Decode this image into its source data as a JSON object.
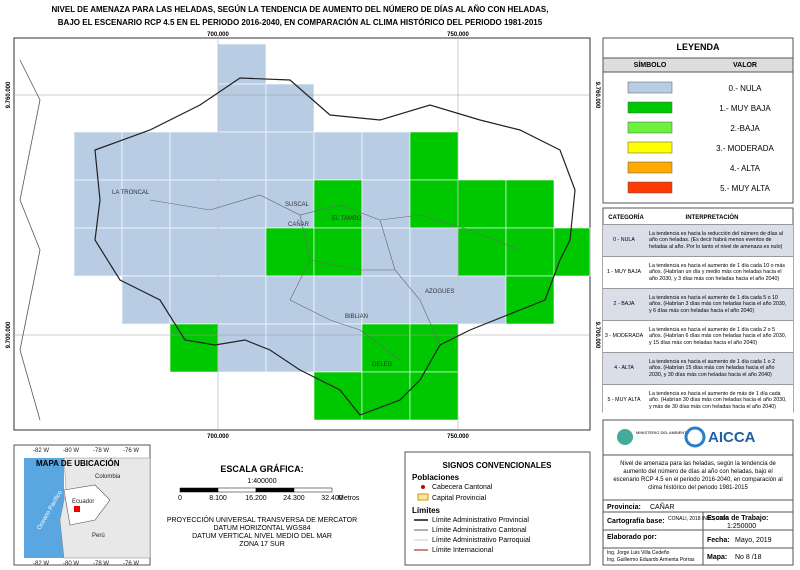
{
  "title": [
    "NIVEL DE AMENAZA PARA LAS HELADAS, SEGÚN LA TENDENCIA DE AUMENTO DEL NÚMERO DE DÍAS AL AÑO CON HELADAS,",
    "BAJO EL ESCENARIO RCP 4.5 EN EL PERIODO 2016-2040, EN COMPARACIÓN AL CLIMA HISTÓRICO DEL PERIODO 1981-2015"
  ],
  "map": {
    "x_coords": [
      "700.000",
      "750.000"
    ],
    "y_coords": [
      "9.760.000",
      "9.700.000"
    ],
    "places": [
      "LA TRONCAL",
      "SUSCAL",
      "CAÑAR",
      "EL TAMBO",
      "AZOGUES",
      "BIBLIAN",
      "DELEG"
    ]
  },
  "legend": {
    "title": "LEYENDA",
    "headers": [
      "SÍMBOLO",
      "VALOR"
    ],
    "items": [
      {
        "label": "0.- NULA",
        "color": "#b8cce4"
      },
      {
        "label": "1.- MUY BAJA",
        "color": "#00c800"
      },
      {
        "label": "2.-BAJA",
        "color": "#6cf23c"
      },
      {
        "label": "3.- MODERADA",
        "color": "#ffff00"
      },
      {
        "label": "4.- ALTA",
        "color": "#ffaa00"
      },
      {
        "label": "5.- MUY ALTA",
        "color": "#ff3a00"
      }
    ]
  },
  "interpretation": {
    "headers": [
      "CATEGORÍA",
      "INTERPRETACIÓN"
    ],
    "rows": [
      [
        "0 - NULA",
        "La tendencia es hacia la reducción del número de días al año con heladas. (Es decir habrá menos eventos de heladas al año. Por lo tanto el nivel de amenaza es nulo)"
      ],
      [
        "1 - MUY BAJA",
        "La tendencia es hacia el aumento de 1 día cada 10 o más años. (Habrían un día y medio más con heladas hacia el año 2030, y 3 días más con heladas hacia el año 2040)"
      ],
      [
        "2 - BAJA",
        "La tendencia es hacia el aumento de 1 día cada 5 o 10 años. (Habrían 3 días más con heladas hacia el año 2030, y 6 días más con heladas hacia el año 2040)"
      ],
      [
        "3 - MODERADA",
        "La tendencia es hacia el aumento de 1 día cada 2 o 5 años. (Habrían 6 días más con heladas hacia el año 2030, y 15 días más con heladas hacia el año 2040)"
      ],
      [
        "4 - ALTA",
        "La tendencia es hacia el aumento de 1 día cada 1 o 2 años. (Habrían 15 días más con heladas hacia el año 2030, y 30 días más con heladas hacia el año 2040)"
      ],
      [
        "5 - MUY ALTA",
        "La tendencia es hacia el aumento de más de 1 día cada año. (Habrían 30 días más con heladas hacia el año 2030, y más de 30 días más con heladas hacia el año 2040)"
      ]
    ]
  },
  "info": {
    "ministry": "MINISTERIO DEL AMBIENTE",
    "logo": "AICCA",
    "description": "Nivel de amenaza para las heladas, según la tendencia de aumento del número de días al año con heladas, bajo el escenario RCP 4.5 en el periodo 2016-2040, en comparación al clima histórico del periodo 1981-2015",
    "province_label": "Provincia:",
    "province": "CAÑAR",
    "base_label": "Cartografía base:",
    "base": "CONALI, 2018 INEC, 2016",
    "scale_label": "Escala de Trabajo:",
    "scale": "1:250000",
    "author_label": "Elaborado por:",
    "authors": [
      "Ing. Jorge Luis Villa Cedeño",
      "Ing. Guillermo Eduardo Armenta Porras"
    ],
    "date_label": "Fecha:",
    "date": "Mayo, 2019",
    "map_label": "Mapa:",
    "map_no": "No 8 /18"
  },
  "inset": {
    "title": "MAPA DE UBICACIÓN",
    "lon": [
      "-82 W",
      "-80 W",
      "-78 W",
      "-76 W"
    ],
    "countries": [
      "Colombia",
      "Ecuador",
      "Perú"
    ],
    "ocean": "Oceano Pacífico"
  },
  "scale": {
    "title": "ESCALA GRÁFICA:",
    "ratio": "1:400000",
    "ticks": [
      "0",
      "8.100",
      "16.200",
      "24.300",
      "32.400"
    ],
    "unit": "Metros",
    "projection": [
      "PROYECCIÓN UNIVERSAL TRANSVERSA DE MERCATOR",
      "DATUM HORIZONTAL WGS84",
      "DATUM VERTICAL NIVEL MEDIO DEL MAR",
      "ZONA 17 SUR"
    ]
  },
  "signs": {
    "title": "SIGNOS CONVENCIONALES",
    "populations": "Poblaciones",
    "pop_items": [
      "Cabecera Cantonal",
      "Capital Provincial"
    ],
    "limits": "Límites",
    "limit_items": [
      "Límite Administrativo Provincial",
      "Límite Administrativo Cantonal",
      "Límite Administrativo Parroquial",
      "Límite Internacional"
    ]
  }
}
